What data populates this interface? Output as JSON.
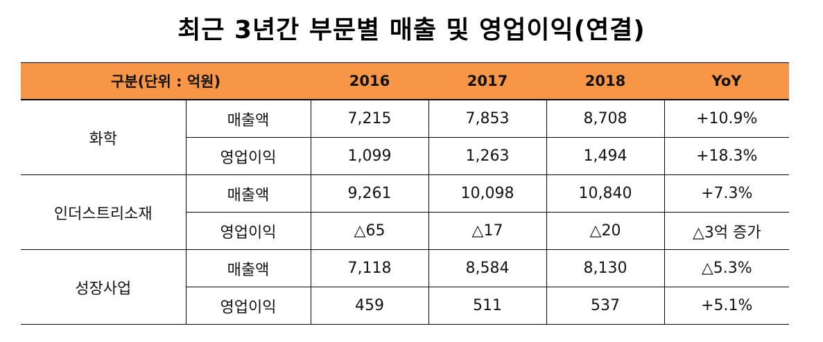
{
  "title": "최근 3년간 부문별 매출 및 영업이익(연결)",
  "table": {
    "header": [
      "구분(단위 : 억원)",
      "2016",
      "2017",
      "2018",
      "YoY"
    ],
    "groups": [
      {
        "name": "화학",
        "rows": [
          [
            "매출액",
            "7,215",
            "7,853",
            "8,708",
            "+10.9%"
          ],
          [
            "영업이익",
            "1,099",
            "1,263",
            "1,494",
            "+18.3%"
          ]
        ]
      },
      {
        "name": "인더스트리소재",
        "rows": [
          [
            "매출액",
            "9,261",
            "10,098",
            "10,840",
            "+7.3%"
          ],
          [
            "영업이익",
            "△65",
            "△17",
            "△20",
            "△3억 증가"
          ]
        ]
      },
      {
        "name": "성장사업",
        "rows": [
          [
            "매출액",
            "7,118",
            "8,584",
            "8,130",
            "△5.3%"
          ],
          [
            "영업이익",
            "459",
            "511",
            "537",
            "+5.1%"
          ]
        ]
      }
    ]
  }
}
